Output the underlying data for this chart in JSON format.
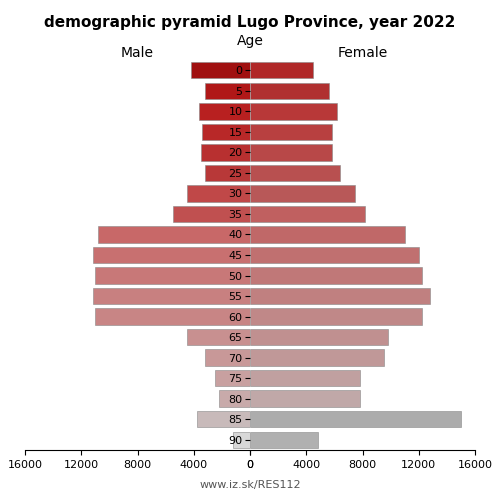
{
  "title": "demographic pyramid Lugo Province, year 2022",
  "age_labels": [
    "90",
    "85",
    "80",
    "75",
    "70",
    "65",
    "60",
    "55",
    "50",
    "45",
    "40",
    "35",
    "30",
    "25",
    "20",
    "15",
    "10",
    "5",
    "0"
  ],
  "male": [
    1200,
    3800,
    2200,
    2500,
    3200,
    4500,
    11000,
    11200,
    11000,
    11200,
    10800,
    5500,
    4500,
    3200,
    3500,
    3400,
    3600,
    3200,
    4200
  ],
  "female": [
    4800,
    15000,
    7800,
    7800,
    9500,
    9800,
    12200,
    12800,
    12200,
    12000,
    11000,
    8200,
    7500,
    6400,
    5800,
    5800,
    6200,
    5600,
    4500
  ],
  "male_colors": [
    "#d0d0d0",
    "#c8b8b8",
    "#c8a8a8",
    "#c8a0a0",
    "#c89898",
    "#c89090",
    "#c88080",
    "#c87878",
    "#c87070",
    "#c86868",
    "#c86060",
    "#c85858",
    "#c04848",
    "#c03838",
    "#b83030",
    "#b82828",
    "#b82020",
    "#b01818",
    "#a01010"
  ],
  "female_colors": [
    "#b8b8b8",
    "#acacac",
    "#c0a0a0",
    "#c0a0a0",
    "#c09898",
    "#c09090",
    "#c08888",
    "#c08080",
    "#c07878",
    "#c07070",
    "#c06868",
    "#c06060",
    "#b85858",
    "#b85050",
    "#b84848",
    "#b84040",
    "#b83838",
    "#b83030",
    "#b02828"
  ],
  "xlim": 16000,
  "xlabel_left": "Male",
  "xlabel_right": "Female",
  "xlabel_center": "Age",
  "watermark": "www.iz.sk/RES112",
  "bar_height": 0.8
}
